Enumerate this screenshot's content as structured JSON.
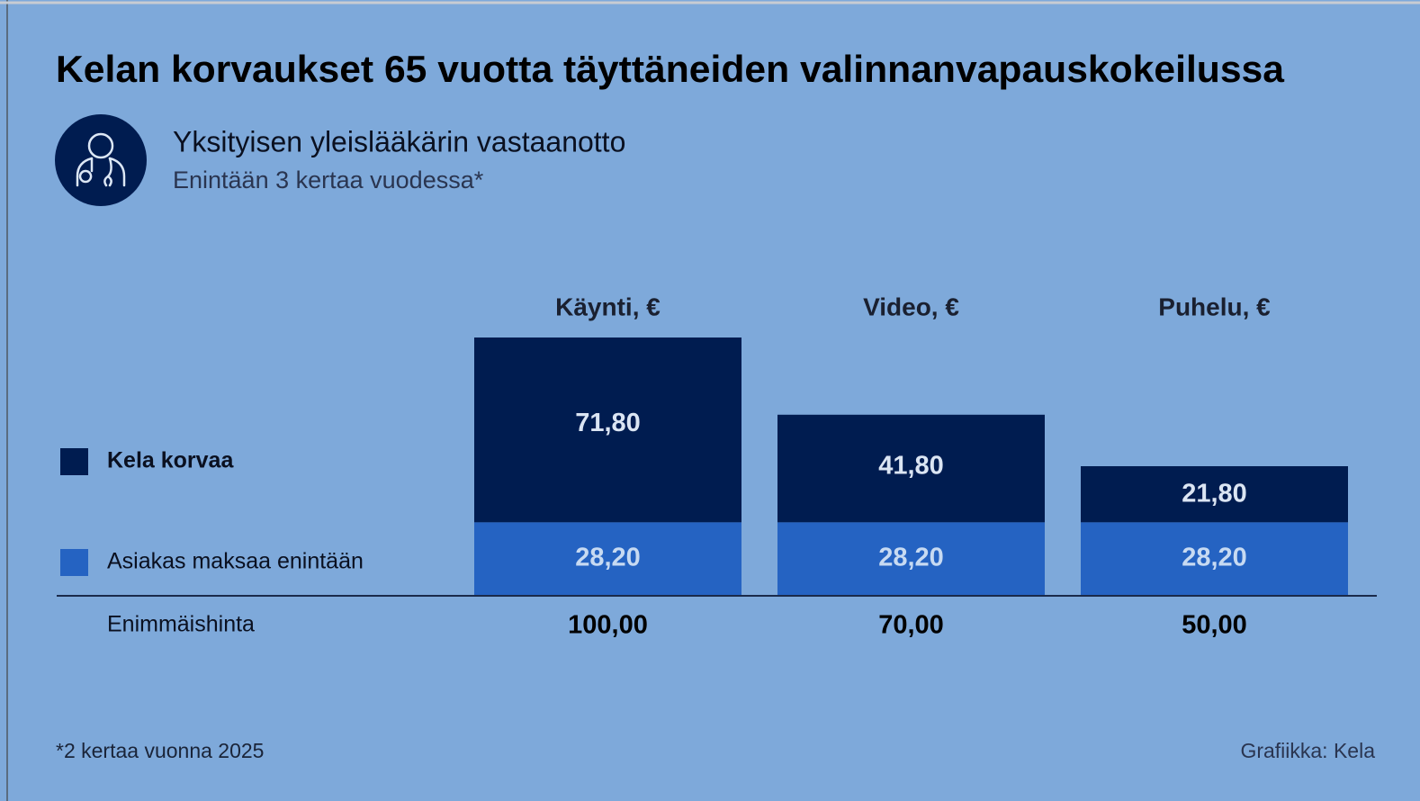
{
  "chart_data": {
    "type": "stacked_bar",
    "title": "Kelan korvaukset 65 vuotta täyttäneiden valinnanvapauskokeilussa",
    "subtitle": "Yksityisen yleislääkärin vastaanotto",
    "subtitle_note": "Enintään 3 kertaa vuodessa*",
    "categories": [
      "Käynti, €",
      "Video, €",
      "Puhelu, €"
    ],
    "series": [
      {
        "name": "Asiakas maksaa enintään",
        "color": "#2563c2",
        "values": [
          28.2,
          28.2,
          28.2
        ],
        "value_labels": [
          "28,20",
          "28,20",
          "28,20"
        ]
      },
      {
        "name": "Kela korvaa",
        "color": "#001c50",
        "values": [
          71.8,
          41.8,
          21.8
        ],
        "value_labels": [
          "71,80",
          "41,80",
          "21,80"
        ]
      }
    ],
    "totals": {
      "label": "Enimmäishinta",
      "values": [
        100,
        70,
        50
      ],
      "value_labels": [
        "100,00",
        "70,00",
        "50,00"
      ]
    },
    "footnote": "*2 kertaa vuonna 2025",
    "source": "Grafiikka: Kela"
  }
}
